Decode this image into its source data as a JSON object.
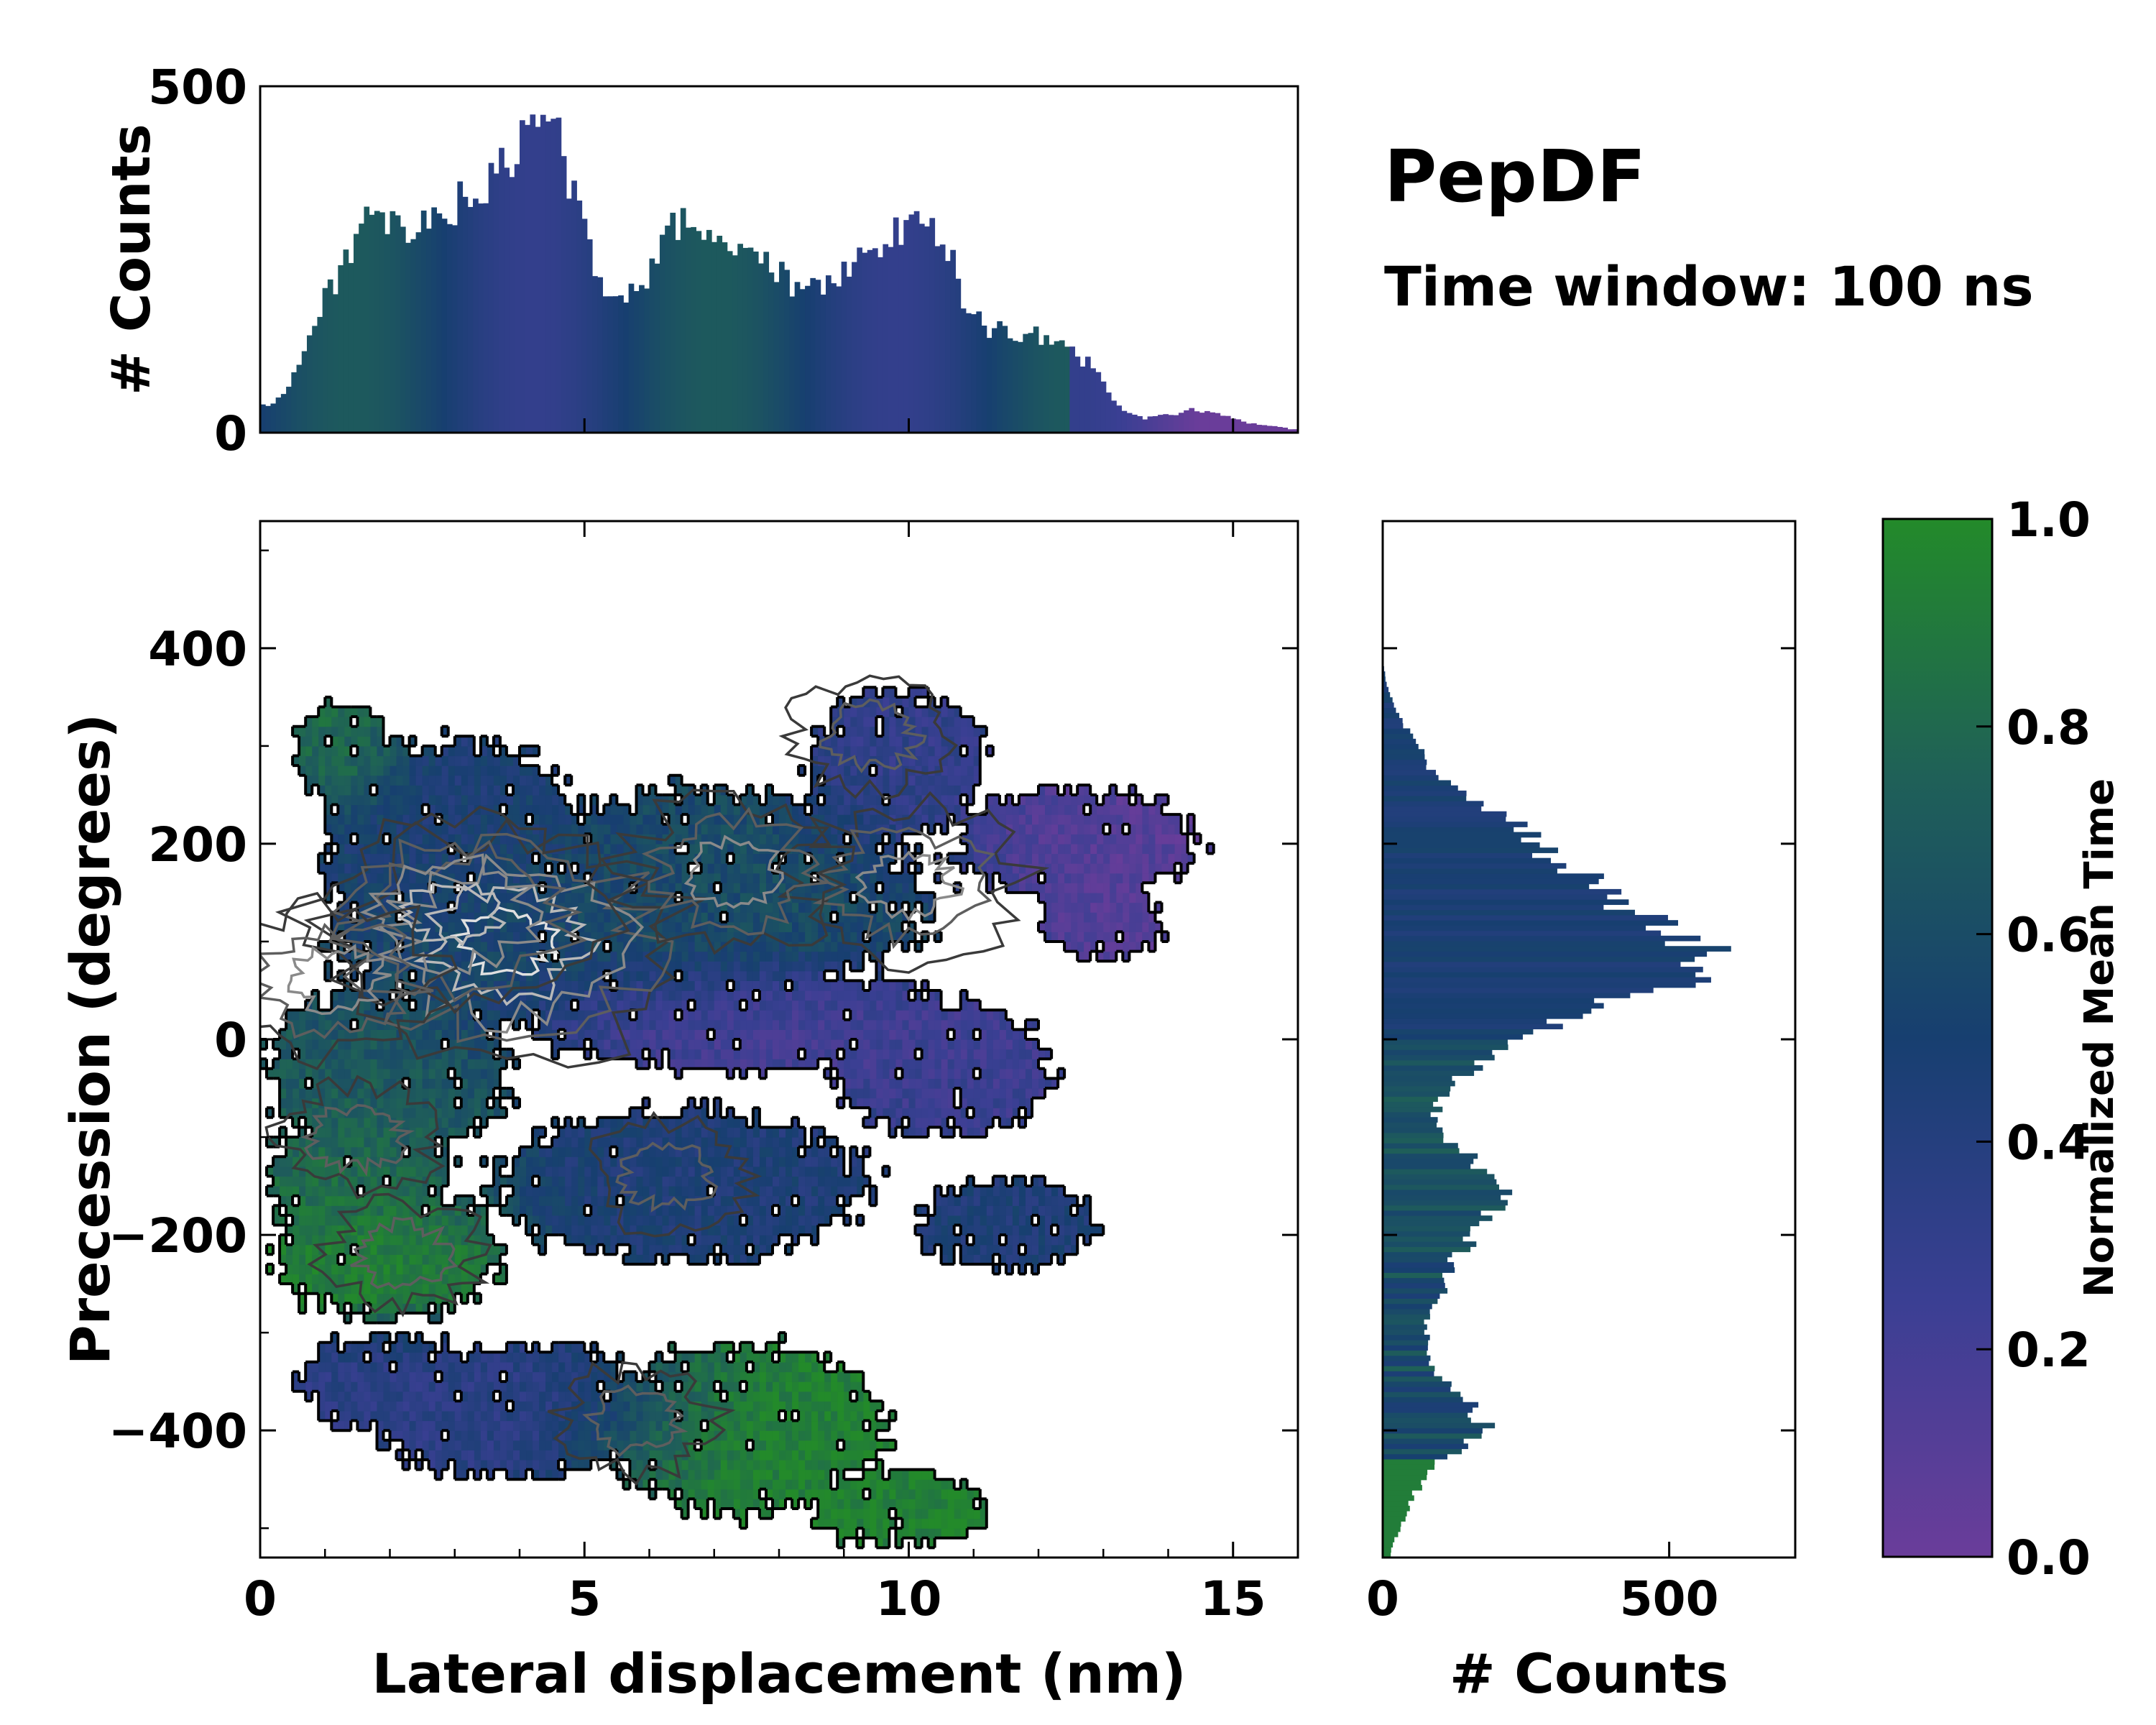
{
  "figure": {
    "title": "PepDF",
    "subtitle": "Time window: 100 ns"
  },
  "colors": {
    "purple": "#6a3d9a",
    "indigo": "#3a3f93",
    "navy": "#173f70",
    "teal": "#1f6058",
    "green": "#238a2a"
  },
  "chart_data": [
    {
      "type": "heatmap",
      "name": "joint-density",
      "xlabel": "Lateral displacement (nm)",
      "ylabel": "Precession (degrees)",
      "xlim": [
        0,
        16
      ],
      "ylim": [
        -530,
        530
      ],
      "xticks": [
        0,
        5,
        10,
        15
      ],
      "yticks": [
        -400,
        -200,
        0,
        200,
        400
      ],
      "color_metric": "normalized mean time",
      "contours": "black outer boundary, dark-to-light gray inner density levels",
      "regions": [
        {
          "cx": 1.3,
          "cy": 290,
          "rx": 0.8,
          "ry": 55,
          "value": 0.85
        },
        {
          "cx": 3.0,
          "cy": 200,
          "rx": 2.2,
          "ry": 110,
          "value": 0.45
        },
        {
          "cx": 3.5,
          "cy": 100,
          "rx": 2.5,
          "ry": 90,
          "value": 0.55
        },
        {
          "cx": 7.0,
          "cy": 150,
          "rx": 3.5,
          "ry": 110,
          "value": 0.6
        },
        {
          "cx": 9.8,
          "cy": 280,
          "rx": 1.4,
          "ry": 80,
          "value": 0.3
        },
        {
          "cx": 12.6,
          "cy": 200,
          "rx": 2.0,
          "ry": 60,
          "value": 0.1
        },
        {
          "cx": 13.0,
          "cy": 120,
          "rx": 1.0,
          "ry": 40,
          "value": 0.1
        },
        {
          "cx": 7.5,
          "cy": 20,
          "rx": 3.5,
          "ry": 55,
          "value": 0.15
        },
        {
          "cx": 10.5,
          "cy": -30,
          "rx": 1.8,
          "ry": 70,
          "value": 0.25
        },
        {
          "cx": 2.0,
          "cy": -30,
          "rx": 2.0,
          "ry": 90,
          "value": 0.7
        },
        {
          "cx": 2.0,
          "cy": -220,
          "rx": 1.8,
          "ry": 70,
          "value": 0.95
        },
        {
          "cx": 1.5,
          "cy": -140,
          "rx": 1.5,
          "ry": 70,
          "value": 0.8
        },
        {
          "cx": 6.5,
          "cy": -150,
          "rx": 3.0,
          "ry": 80,
          "value": 0.45
        },
        {
          "cx": 11.5,
          "cy": -190,
          "rx": 1.4,
          "ry": 50,
          "value": 0.45
        },
        {
          "cx": 4.0,
          "cy": -380,
          "rx": 2.5,
          "ry": 70,
          "value": 0.35
        },
        {
          "cx": 2.0,
          "cy": -350,
          "rx": 1.5,
          "ry": 50,
          "value": 0.35
        },
        {
          "cx": 7.5,
          "cy": -400,
          "rx": 2.2,
          "ry": 90,
          "value": 0.95
        },
        {
          "cx": 9.8,
          "cy": -480,
          "rx": 1.4,
          "ry": 40,
          "value": 0.95
        }
      ],
      "density_peaks": [
        {
          "x": 3.8,
          "y": 100,
          "level": 5
        },
        {
          "x": 3.0,
          "y": 130,
          "level": 4
        },
        {
          "x": 1.2,
          "y": 60,
          "level": 3
        },
        {
          "x": 10.0,
          "y": 160,
          "level": 3
        },
        {
          "x": 7.3,
          "y": 170,
          "level": 3
        },
        {
          "x": 9.4,
          "y": 310,
          "level": 2
        },
        {
          "x": 2.2,
          "y": -220,
          "level": 2
        },
        {
          "x": 5.8,
          "y": -390,
          "level": 2
        },
        {
          "x": 6.3,
          "y": -140,
          "level": 2
        },
        {
          "x": 1.5,
          "y": -100,
          "level": 2
        }
      ]
    },
    {
      "type": "bar",
      "name": "top-marginal-histogram",
      "ylabel": "# Counts",
      "xlim": [
        0,
        16
      ],
      "ylim": [
        0,
        500
      ],
      "yticks": [
        0,
        500
      ],
      "x": [
        0.2,
        0.5,
        1.0,
        1.3,
        1.6,
        2.0,
        2.3,
        2.7,
        3.0,
        3.3,
        3.6,
        3.9,
        4.2,
        4.4,
        4.6,
        4.9,
        5.2,
        5.6,
        5.9,
        6.2,
        6.5,
        6.8,
        7.2,
        7.6,
        8.0,
        8.3,
        8.6,
        9.0,
        9.3,
        9.6,
        9.9,
        10.2,
        10.4,
        10.6,
        10.8,
        11.2,
        11.6,
        12.0,
        12.4,
        12.8,
        13.2,
        13.6,
        14.0,
        14.4,
        14.8,
        15.2,
        15.6,
        15.9
      ],
      "counts": [
        40,
        80,
        190,
        250,
        300,
        295,
        285,
        305,
        330,
        340,
        360,
        400,
        440,
        460,
        420,
        330,
        215,
        205,
        215,
        270,
        310,
        300,
        270,
        250,
        230,
        200,
        215,
        230,
        250,
        270,
        295,
        310,
        300,
        270,
        200,
        150,
        145,
        140,
        120,
        100,
        40,
        20,
        25,
        35,
        25,
        15,
        10,
        5
      ]
    },
    {
      "type": "bar",
      "name": "right-marginal-histogram",
      "orientation": "horizontal",
      "xlabel": "# Counts",
      "xlim": [
        0,
        720
      ],
      "xticks": [
        0,
        500
      ],
      "y": [
        -520,
        -490,
        -460,
        -430,
        -400,
        -380,
        -360,
        -340,
        -320,
        -300,
        -280,
        -260,
        -240,
        -220,
        -200,
        -180,
        -160,
        -140,
        -120,
        -100,
        -80,
        -60,
        -40,
        -20,
        0,
        20,
        40,
        60,
        80,
        100,
        120,
        140,
        160,
        180,
        200,
        220,
        240,
        260,
        280,
        300,
        320,
        340,
        360,
        380,
        400,
        420
      ],
      "counts": [
        15,
        40,
        60,
        100,
        190,
        160,
        130,
        95,
        70,
        75,
        85,
        100,
        110,
        130,
        160,
        180,
        210,
        190,
        150,
        110,
        90,
        100,
        130,
        180,
        240,
        330,
        400,
        520,
        600,
        540,
        480,
        420,
        380,
        300,
        280,
        250,
        180,
        120,
        80,
        60,
        40,
        20,
        8,
        2,
        0,
        0
      ]
    },
    {
      "type": "heatmap",
      "name": "colorbar",
      "label": "Normalized Mean Time",
      "ylim": [
        0,
        1
      ],
      "ticks": [
        0.0,
        0.2,
        0.4,
        0.6,
        0.8,
        1.0
      ],
      "tick_labels": [
        "0.0",
        "0.2",
        "0.4",
        "0.6",
        "0.8",
        "1.0"
      ]
    }
  ]
}
